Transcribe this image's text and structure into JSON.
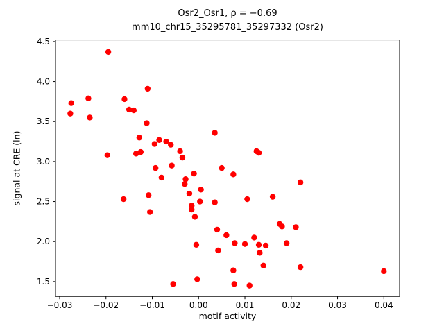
{
  "accent_color": "#ff0000",
  "background_color": "#ffffff",
  "title": {
    "line1": "Osr2_Osr1, ρ = −0.69",
    "line2": "mm10_chr15_35295781_35297332 (Osr2)"
  },
  "chart_data": {
    "type": "scatter",
    "title": "Osr2_Osr1, ρ = −0.69",
    "subtitle": "mm10_chr15_35295781_35297332 (Osr2)",
    "xlabel": "motif activity",
    "ylabel": "signal at CRE (ln)",
    "legend": "none",
    "grid": false,
    "marker_color": "#ff0000",
    "marker_radius": 4.2,
    "xlim": [
      -0.0309,
      0.0434
    ],
    "ylim": [
      1.315,
      4.52
    ],
    "xticks": [
      -0.03,
      -0.02,
      -0.01,
      0.0,
      0.01,
      0.02,
      0.03,
      0.04
    ],
    "xtick_labels": [
      "−0.03",
      "−0.02",
      "−0.01",
      "0.00",
      "0.01",
      "0.02",
      "0.03",
      "0.04"
    ],
    "yticks": [
      1.5,
      2.0,
      2.5,
      3.0,
      3.5,
      4.0,
      4.5
    ],
    "ytick_labels": [
      "1.5",
      "2.0",
      "2.5",
      "3.0",
      "3.5",
      "4.0",
      "4.5"
    ],
    "points": [
      [
        -0.0277,
        3.6
      ],
      [
        -0.0275,
        3.73
      ],
      [
        -0.0238,
        3.79
      ],
      [
        -0.0235,
        3.55
      ],
      [
        -0.0195,
        4.37
      ],
      [
        -0.0197,
        3.08
      ],
      [
        -0.016,
        3.78
      ],
      [
        -0.0162,
        2.53
      ],
      [
        -0.015,
        3.65
      ],
      [
        -0.014,
        3.64
      ],
      [
        -0.0135,
        3.1
      ],
      [
        -0.0128,
        3.3
      ],
      [
        -0.0125,
        3.12
      ],
      [
        -0.011,
        3.91
      ],
      [
        -0.0112,
        3.48
      ],
      [
        -0.0108,
        2.58
      ],
      [
        -0.0105,
        2.37
      ],
      [
        -0.0095,
        3.22
      ],
      [
        -0.0093,
        2.92
      ],
      [
        -0.0085,
        3.27
      ],
      [
        -0.008,
        2.8
      ],
      [
        -0.007,
        3.25
      ],
      [
        -0.006,
        3.21
      ],
      [
        -0.0058,
        2.95
      ],
      [
        -0.0055,
        1.47
      ],
      [
        -0.004,
        3.13
      ],
      [
        -0.0035,
        3.05
      ],
      [
        -0.003,
        2.72
      ],
      [
        -0.0028,
        2.78
      ],
      [
        -0.002,
        2.6
      ],
      [
        -0.0015,
        2.45
      ],
      [
        -0.0015,
        2.4
      ],
      [
        -0.001,
        2.85
      ],
      [
        -0.0008,
        2.31
      ],
      [
        -0.0005,
        1.96
      ],
      [
        -0.0003,
        1.53
      ],
      [
        0.0003,
        2.5
      ],
      [
        0.0005,
        2.65
      ],
      [
        0.0035,
        3.36
      ],
      [
        0.0035,
        2.49
      ],
      [
        0.004,
        2.15
      ],
      [
        0.0042,
        1.89
      ],
      [
        0.005,
        2.92
      ],
      [
        0.006,
        2.08
      ],
      [
        0.0075,
        2.84
      ],
      [
        0.0078,
        1.98
      ],
      [
        0.0075,
        1.64
      ],
      [
        0.0077,
        1.47
      ],
      [
        0.01,
        1.97
      ],
      [
        0.0105,
        2.53
      ],
      [
        0.011,
        1.45
      ],
      [
        0.012,
        2.05
      ],
      [
        0.0125,
        3.13
      ],
      [
        0.013,
        3.11
      ],
      [
        0.013,
        1.96
      ],
      [
        0.0132,
        1.86
      ],
      [
        0.014,
        1.7
      ],
      [
        0.0145,
        1.95
      ],
      [
        0.016,
        2.56
      ],
      [
        0.0175,
        2.22
      ],
      [
        0.018,
        2.19
      ],
      [
        0.019,
        1.98
      ],
      [
        0.021,
        2.18
      ],
      [
        0.022,
        2.74
      ],
      [
        0.022,
        1.68
      ],
      [
        0.04,
        1.63
      ]
    ]
  }
}
